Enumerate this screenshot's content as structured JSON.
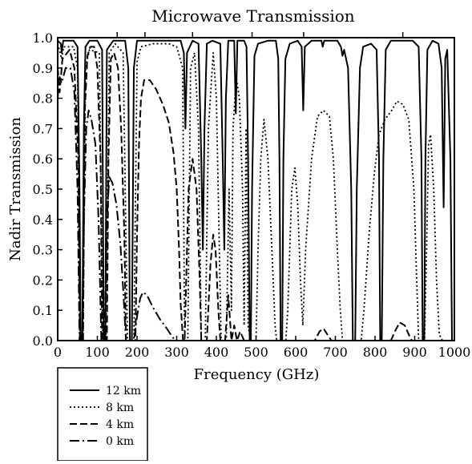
{
  "chart_data": {
    "type": "line",
    "title": "Microwave Transmission",
    "xlabel": "Frequency (GHz)",
    "ylabel": "Nadir Transmission",
    "xlim": [
      0,
      1000
    ],
    "ylim": [
      0,
      1.0
    ],
    "xticks": [
      "0",
      "100",
      "200",
      "300",
      "400",
      "500",
      "600",
      "700",
      "800",
      "900",
      "1000"
    ],
    "yticks": [
      "0.0",
      "0.1",
      "0.2",
      "0.3",
      "0.4",
      "0.5",
      "0.6",
      "0.7",
      "0.8",
      "0.9",
      "1.0"
    ],
    "top_markers": [
      150,
      220,
      340,
      490,
      620,
      870
    ],
    "grid": false,
    "legend_position": "bottom-left-outside",
    "series": [
      {
        "name": "12 km",
        "dash": "solid",
        "color": "#000000",
        "points": [
          [
            0,
            0.99
          ],
          [
            8,
            0.98
          ],
          [
            10,
            0.95
          ],
          [
            14,
            0.99
          ],
          [
            40,
            0.99
          ],
          [
            50,
            0.97
          ],
          [
            55,
            0.5
          ],
          [
            58,
            0.0
          ],
          [
            62,
            0.0
          ],
          [
            66,
            0.7
          ],
          [
            70,
            0.97
          ],
          [
            80,
            0.99
          ],
          [
            100,
            0.99
          ],
          [
            112,
            0.96
          ],
          [
            116,
            0.0
          ],
          [
            120,
            0.0
          ],
          [
            124,
            0.96
          ],
          [
            140,
            0.99
          ],
          [
            170,
            0.99
          ],
          [
            178,
            0.9
          ],
          [
            182,
            0.0
          ],
          [
            187,
            0.0
          ],
          [
            192,
            0.9
          ],
          [
            200,
            0.99
          ],
          [
            310,
            0.99
          ],
          [
            318,
            0.95
          ],
          [
            322,
            0.7
          ],
          [
            326,
            0.95
          ],
          [
            340,
            0.99
          ],
          [
            355,
            0.98
          ],
          [
            362,
            0.6
          ],
          [
            366,
            0.3
          ],
          [
            370,
            0.7
          ],
          [
            376,
            0.98
          ],
          [
            390,
            0.99
          ],
          [
            410,
            0.98
          ],
          [
            416,
            0.6
          ],
          [
            420,
            0.3
          ],
          [
            424,
            0.8
          ],
          [
            430,
            0.99
          ],
          [
            445,
            0.99
          ],
          [
            449,
            0.75
          ],
          [
            453,
            0.99
          ],
          [
            470,
            0.99
          ],
          [
            476,
            0.97
          ],
          [
            480,
            0.6
          ],
          [
            484,
            0.0
          ],
          [
            487,
            0.0
          ],
          [
            490,
            0.5
          ],
          [
            496,
            0.94
          ],
          [
            505,
            0.98
          ],
          [
            530,
            0.99
          ],
          [
            550,
            0.99
          ],
          [
            556,
            0.93
          ],
          [
            559,
            0.6
          ],
          [
            562,
            0.0
          ],
          [
            566,
            0.0
          ],
          [
            569,
            0.6
          ],
          [
            574,
            0.93
          ],
          [
            585,
            0.98
          ],
          [
            605,
            0.99
          ],
          [
            615,
            0.97
          ],
          [
            619,
            0.76
          ],
          [
            623,
            0.97
          ],
          [
            640,
            0.99
          ],
          [
            665,
            0.99
          ],
          [
            668,
            0.97
          ],
          [
            672,
            0.99
          ],
          [
            705,
            0.99
          ],
          [
            714,
            0.97
          ],
          [
            718,
            0.94
          ],
          [
            722,
            0.96
          ],
          [
            732,
            0.9
          ],
          [
            740,
            0.5
          ],
          [
            744,
            0.0
          ],
          [
            750,
            0.0
          ],
          [
            754,
            0.5
          ],
          [
            762,
            0.9
          ],
          [
            770,
            0.97
          ],
          [
            790,
            0.98
          ],
          [
            804,
            0.96
          ],
          [
            810,
            0.6
          ],
          [
            813,
            0.0
          ],
          [
            817,
            0.0
          ],
          [
            821,
            0.6
          ],
          [
            827,
            0.96
          ],
          [
            840,
            0.99
          ],
          [
            895,
            0.99
          ],
          [
            910,
            0.97
          ],
          [
            917,
            0.6
          ],
          [
            920,
            0.0
          ],
          [
            924,
            0.0
          ],
          [
            927,
            0.6
          ],
          [
            932,
            0.96
          ],
          [
            945,
            0.99
          ],
          [
            960,
            0.98
          ],
          [
            968,
            0.9
          ],
          [
            973,
            0.44
          ],
          [
            977,
            0.93
          ],
          [
            982,
            0.96
          ],
          [
            990,
            0.6
          ],
          [
            994,
            0.0
          ],
          [
            1000,
            0.0
          ]
        ]
      },
      {
        "name": "8 km",
        "dash": "dotted",
        "color": "#000000",
        "points": [
          [
            0,
            0.98
          ],
          [
            10,
            0.93
          ],
          [
            15,
            0.97
          ],
          [
            40,
            0.97
          ],
          [
            50,
            0.9
          ],
          [
            56,
            0.0
          ],
          [
            64,
            0.0
          ],
          [
            70,
            0.9
          ],
          [
            80,
            0.96
          ],
          [
            105,
            0.95
          ],
          [
            114,
            0.0
          ],
          [
            122,
            0.0
          ],
          [
            130,
            0.95
          ],
          [
            145,
            0.98
          ],
          [
            165,
            0.95
          ],
          [
            176,
            0.0
          ],
          [
            192,
            0.0
          ],
          [
            200,
            0.92
          ],
          [
            210,
            0.97
          ],
          [
            240,
            0.98
          ],
          [
            280,
            0.98
          ],
          [
            300,
            0.97
          ],
          [
            315,
            0.9
          ],
          [
            320,
            0.0
          ],
          [
            328,
            0.0
          ],
          [
            335,
            0.9
          ],
          [
            345,
            0.95
          ],
          [
            355,
            0.7
          ],
          [
            362,
            0.0
          ],
          [
            372,
            0.0
          ],
          [
            380,
            0.7
          ],
          [
            392,
            0.95
          ],
          [
            400,
            0.8
          ],
          [
            412,
            0.0
          ],
          [
            425,
            0.0
          ],
          [
            432,
            0.5
          ],
          [
            438,
            0.1
          ],
          [
            442,
            0.7
          ],
          [
            450,
            0.87
          ],
          [
            458,
            0.8
          ],
          [
            466,
            0.5
          ],
          [
            470,
            0.05
          ],
          [
            475,
            0.7
          ],
          [
            480,
            0.05
          ],
          [
            486,
            0.0
          ],
          [
            500,
            0.0
          ],
          [
            505,
            0.3
          ],
          [
            512,
            0.6
          ],
          [
            520,
            0.73
          ],
          [
            530,
            0.6
          ],
          [
            540,
            0.3
          ],
          [
            548,
            0.05
          ],
          [
            552,
            0.0
          ],
          [
            575,
            0.0
          ],
          [
            580,
            0.1
          ],
          [
            590,
            0.5
          ],
          [
            598,
            0.57
          ],
          [
            605,
            0.45
          ],
          [
            612,
            0.2
          ],
          [
            618,
            0.05
          ],
          [
            625,
            0.3
          ],
          [
            640,
            0.6
          ],
          [
            655,
            0.74
          ],
          [
            670,
            0.76
          ],
          [
            685,
            0.74
          ],
          [
            695,
            0.6
          ],
          [
            705,
            0.3
          ],
          [
            712,
            0.11
          ],
          [
            718,
            0.0
          ],
          [
            765,
            0.0
          ],
          [
            772,
            0.1
          ],
          [
            785,
            0.35
          ],
          [
            798,
            0.55
          ],
          [
            810,
            0.68
          ],
          [
            825,
            0.73
          ],
          [
            842,
            0.76
          ],
          [
            855,
            0.79
          ],
          [
            870,
            0.78
          ],
          [
            885,
            0.73
          ],
          [
            898,
            0.5
          ],
          [
            905,
            0.2
          ],
          [
            910,
            0.0
          ],
          [
            925,
            0.0
          ],
          [
            930,
            0.3
          ],
          [
            935,
            0.65
          ],
          [
            940,
            0.68
          ],
          [
            948,
            0.5
          ],
          [
            955,
            0.2
          ],
          [
            962,
            0.02
          ],
          [
            970,
            0.0
          ],
          [
            1000,
            0.0
          ]
        ]
      },
      {
        "name": "4 km",
        "dash": "dashed",
        "color": "#000000",
        "points": [
          [
            0,
            0.9
          ],
          [
            5,
            0.82
          ],
          [
            12,
            0.93
          ],
          [
            30,
            0.96
          ],
          [
            42,
            0.9
          ],
          [
            52,
            0.6
          ],
          [
            56,
            0.0
          ],
          [
            64,
            0.0
          ],
          [
            68,
            0.75
          ],
          [
            75,
            0.94
          ],
          [
            82,
            0.97
          ],
          [
            92,
            0.97
          ],
          [
            100,
            0.9
          ],
          [
            108,
            0.6
          ],
          [
            112,
            0.0
          ],
          [
            124,
            0.0
          ],
          [
            128,
            0.6
          ],
          [
            134,
            0.93
          ],
          [
            142,
            0.95
          ],
          [
            152,
            0.9
          ],
          [
            160,
            0.7
          ],
          [
            168,
            0.35
          ],
          [
            172,
            0.0
          ],
          [
            196,
            0.0
          ],
          [
            200,
            0.35
          ],
          [
            205,
            0.65
          ],
          [
            210,
            0.8
          ],
          [
            218,
            0.86
          ],
          [
            232,
            0.86
          ],
          [
            248,
            0.83
          ],
          [
            265,
            0.78
          ],
          [
            280,
            0.72
          ],
          [
            292,
            0.62
          ],
          [
            300,
            0.5
          ],
          [
            306,
            0.3
          ],
          [
            310,
            0.12
          ],
          [
            316,
            0.0
          ],
          [
            320,
            0.0
          ],
          [
            330,
            0.5
          ],
          [
            340,
            0.6
          ],
          [
            350,
            0.5
          ],
          [
            358,
            0.2
          ],
          [
            362,
            0.0
          ],
          [
            376,
            0.0
          ],
          [
            385,
            0.25
          ],
          [
            392,
            0.35
          ],
          [
            398,
            0.3
          ],
          [
            405,
            0.1
          ],
          [
            410,
            0.0
          ],
          [
            422,
            0.0
          ],
          [
            430,
            0.15
          ],
          [
            438,
            0.0
          ],
          [
            445,
            0.05
          ],
          [
            452,
            0.0
          ],
          [
            460,
            0.03
          ],
          [
            470,
            0.0
          ],
          [
            648,
            0.0
          ],
          [
            660,
            0.03
          ],
          [
            670,
            0.04
          ],
          [
            680,
            0.02
          ],
          [
            690,
            0.0
          ],
          [
            840,
            0.0
          ],
          [
            850,
            0.03
          ],
          [
            862,
            0.06
          ],
          [
            875,
            0.05
          ],
          [
            885,
            0.02
          ],
          [
            893,
            0.0
          ],
          [
            1000,
            0.0
          ]
        ]
      },
      {
        "name": "0 km",
        "dash": "dashdot",
        "color": "#000000",
        "points": [
          [
            0,
            0.8
          ],
          [
            5,
            0.87
          ],
          [
            10,
            0.85
          ],
          [
            20,
            0.9
          ],
          [
            32,
            0.9
          ],
          [
            42,
            0.82
          ],
          [
            50,
            0.5
          ],
          [
            55,
            0.0
          ],
          [
            62,
            0.0
          ],
          [
            66,
            0.4
          ],
          [
            72,
            0.7
          ],
          [
            78,
            0.76
          ],
          [
            85,
            0.73
          ],
          [
            95,
            0.65
          ],
          [
            103,
            0.4
          ],
          [
            110,
            0.0
          ],
          [
            118,
            0.0
          ],
          [
            124,
            0.4
          ],
          [
            130,
            0.54
          ],
          [
            138,
            0.52
          ],
          [
            148,
            0.45
          ],
          [
            158,
            0.32
          ],
          [
            166,
            0.15
          ],
          [
            172,
            0.0
          ],
          [
            192,
            0.0
          ],
          [
            200,
            0.08
          ],
          [
            208,
            0.14
          ],
          [
            215,
            0.16
          ],
          [
            225,
            0.15
          ],
          [
            240,
            0.11
          ],
          [
            258,
            0.07
          ],
          [
            275,
            0.04
          ],
          [
            290,
            0.01
          ],
          [
            300,
            0.0
          ],
          [
            1000,
            0.0
          ]
        ]
      }
    ]
  }
}
